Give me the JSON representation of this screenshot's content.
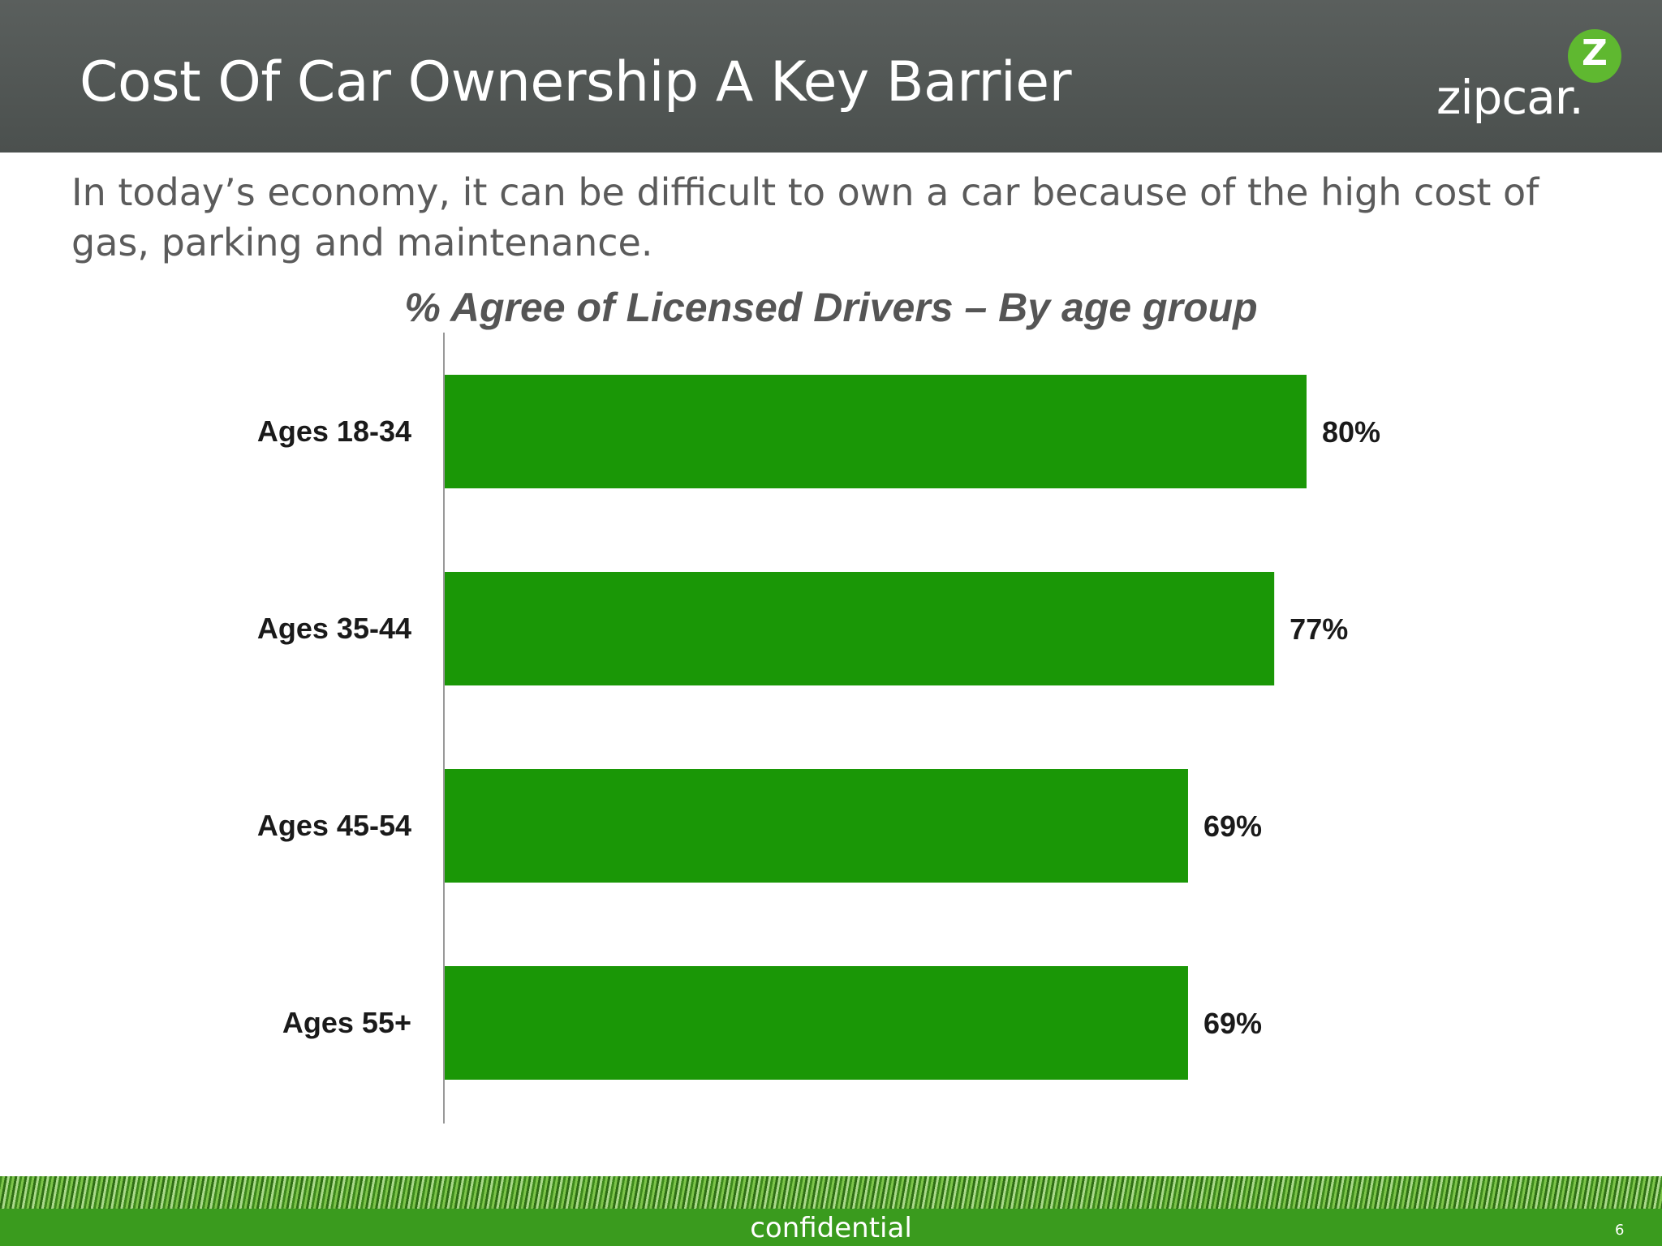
{
  "slide": {
    "title": "Cost Of Car Ownership A Key Barrier",
    "logo_text": "zipcar.",
    "logo_badge": "Z",
    "subtitle": "In today’s economy, it can be difficult to own a car because of the high cost of gas, parking and maintenance.",
    "footer": "confidential",
    "page_number": "6"
  },
  "colors": {
    "bar": "#1a9706",
    "header": "#545957",
    "axis": "#999999"
  },
  "chart_data": {
    "type": "bar",
    "orientation": "horizontal",
    "title": "% Agree of Licensed Drivers – By age group",
    "categories": [
      "Ages 18-34",
      "Ages 35-44",
      "Ages 45-54",
      "Ages 55+"
    ],
    "values": [
      80,
      77,
      69,
      69
    ],
    "value_labels": [
      "80%",
      "77%",
      "69%",
      "69%"
    ],
    "xlabel": "",
    "ylabel": "",
    "grid": false,
    "legend": "none"
  }
}
